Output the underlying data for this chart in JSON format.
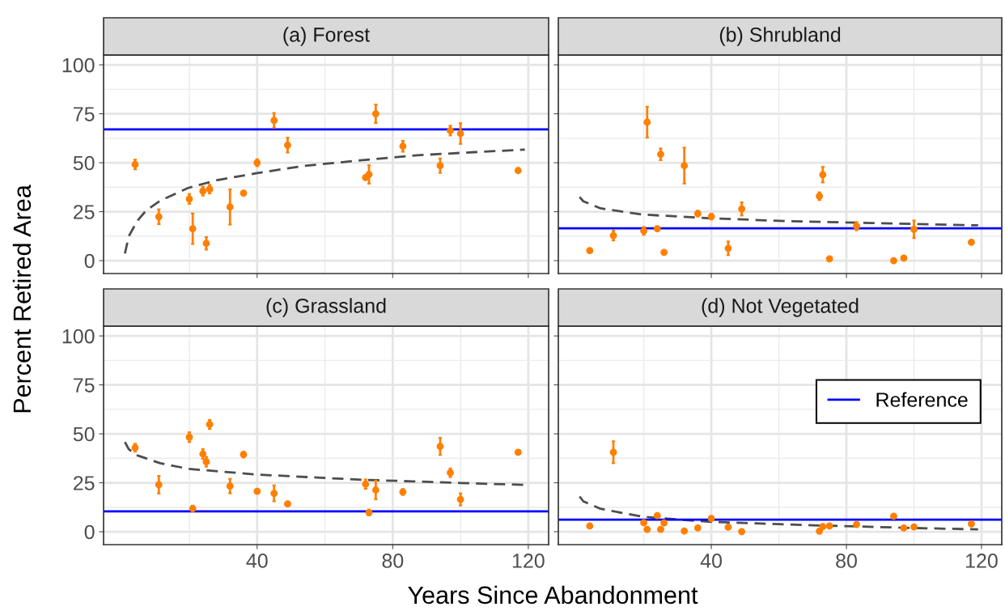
{
  "chart_data": [
    {
      "type": "scatter",
      "title": "(a) Forest",
      "ylabel": "Percent Retired Area",
      "xlim": [
        -5.3,
        126
      ],
      "ylim": [
        -6.6,
        105
      ],
      "xticks": [
        40,
        80,
        120
      ],
      "yticks": [
        0,
        25,
        50,
        75,
        100
      ],
      "grid": true,
      "tick_labels": "y",
      "marker": "circle",
      "series": [
        {
          "color": "#ff7f00",
          "x": [
            4,
            11,
            20,
            21,
            24,
            25,
            26,
            32,
            36,
            40,
            45,
            49,
            72,
            73,
            75,
            83,
            94,
            97,
            100,
            117
          ],
          "values": [
            49.1,
            22.4,
            31.5,
            16.3,
            35.5,
            8.8,
            36.5,
            27.4,
            34.5,
            50,
            71.6,
            59,
            42.4,
            44,
            75,
            58.4,
            48.5,
            66.4,
            64.9,
            46
          ],
          "errors": [
            2.5,
            3.8,
            2.5,
            7.8,
            2.3,
            3.2,
            2.2,
            9,
            null,
            1.8,
            3.8,
            3.8,
            null,
            4.7,
            4.7,
            2.8,
            3.7,
            2.5,
            5.3,
            null
          ]
        },
        {
          "type": "line",
          "color": "#4d4d4d",
          "line_style": "dashed",
          "marker": "none",
          "x": [
            1,
            2.1,
            4.6,
            7.2,
            11.4,
            19.8,
            28.2,
            40,
            53.5,
            70.4,
            87.3,
            104,
            119
          ],
          "values": [
            3.6,
            12.3,
            20.2,
            25.5,
            30.6,
            37.2,
            41.1,
            44.7,
            48.3,
            51.2,
            53.8,
            55.4,
            56.7
          ]
        }
      ],
      "ref_lines": [
        {
          "axis": "y",
          "value": 67.0,
          "color": "#0000ff"
        }
      ]
    },
    {
      "type": "scatter",
      "title": "(b) Shrubland",
      "xlim": [
        -5.3,
        126
      ],
      "ylim": [
        -6.6,
        105
      ],
      "xticks": [
        40,
        80,
        120
      ],
      "yticks": [
        0,
        25,
        50,
        75,
        100
      ],
      "grid": true,
      "tick_labels": false,
      "marker": "circle",
      "series": [
        {
          "color": "#ff7f00",
          "x": [
            4,
            11,
            20,
            21,
            24,
            25,
            26,
            32,
            36,
            40,
            45,
            49,
            72,
            73,
            75,
            83,
            94,
            97,
            100,
            117
          ],
          "values": [
            5.1,
            12.8,
            15.2,
            70.7,
            16.3,
            54.3,
            4.2,
            48.5,
            24.0,
            22.5,
            6.3,
            26.4,
            32.9,
            43.9,
            0.9,
            17.6,
            0,
            1.3,
            16,
            9.4
          ],
          "errors": [
            null,
            2.5,
            2,
            7.9,
            null,
            3,
            null,
            9.2,
            1.5,
            1.5,
            3.5,
            3.4,
            2,
            4,
            null,
            2.1,
            null,
            null,
            4.5,
            null
          ]
        },
        {
          "type": "line",
          "color": "#4d4d4d",
          "line_style": "dashed",
          "marker": "none",
          "x": [
            1,
            2.1,
            7.2,
            19.8,
            40,
            62,
            87.3,
            119
          ],
          "values": [
            32.5,
            30.3,
            26.7,
            23.5,
            21.6,
            20.2,
            19.2,
            18.0
          ]
        }
      ],
      "ref_lines": [
        {
          "axis": "y",
          "value": 16.5,
          "color": "#0000ff"
        }
      ]
    },
    {
      "type": "scatter",
      "title": "(c) Grassland",
      "xlabel": "Years Since Abandonment",
      "xlim": [
        -5.3,
        126
      ],
      "ylim": [
        -6.6,
        105
      ],
      "xticks": [
        40,
        80,
        120
      ],
      "yticks": [
        0,
        25,
        50,
        75,
        100
      ],
      "grid": true,
      "marker": "circle",
      "series": [
        {
          "color": "#ff7f00",
          "x": [
            4,
            11,
            20,
            21,
            24,
            25,
            26,
            32,
            36,
            40,
            45,
            49,
            72,
            73,
            75,
            83,
            94,
            97,
            100,
            117
          ],
          "values": [
            42.9,
            24.0,
            48.3,
            11.8,
            39.7,
            35.7,
            54.8,
            23.3,
            39.4,
            20.6,
            19.6,
            14.2,
            24.3,
            9.8,
            21.3,
            20.3,
            43.6,
            30.1,
            16.5,
            40.6
          ],
          "errors": [
            2,
            4.5,
            2.5,
            1.5,
            2.5,
            2.5,
            2.3,
            3.7,
            1.5,
            null,
            4.1,
            null,
            2.4,
            1.5,
            4.8,
            1.5,
            4.4,
            2.2,
            3.1,
            null
          ]
        },
        {
          "type": "line",
          "color": "#4d4d4d",
          "line_style": "dashed",
          "marker": "none",
          "x": [
            1,
            2.1,
            4.6,
            11.4,
            19.8,
            40,
            70,
            100,
            119
          ],
          "values": [
            45.8,
            42.2,
            39,
            35,
            32.1,
            29.2,
            26.6,
            24.9,
            23.9
          ]
        }
      ],
      "ref_lines": [
        {
          "axis": "y",
          "value": 10.4,
          "color": "#0000ff"
        }
      ]
    },
    {
      "type": "scatter",
      "title": "(d) Not Vegetated",
      "xlim": [
        -5.3,
        126
      ],
      "ylim": [
        -6.6,
        105
      ],
      "xticks": [
        40,
        80,
        120
      ],
      "yticks": [
        0,
        25,
        50,
        75,
        100
      ],
      "grid": true,
      "tick_labels": "x",
      "marker": "circle",
      "legend": "top right",
      "series": [
        {
          "color": "#ff7f00",
          "x": [
            4,
            11,
            20,
            21,
            24,
            25,
            26,
            32,
            36,
            40,
            45,
            49,
            72,
            73,
            75,
            83,
            94,
            97,
            100,
            117
          ],
          "values": [
            2.9,
            40.6,
            4.6,
            1.2,
            8.2,
            1.2,
            4.5,
            0.4,
            1.9,
            6.8,
            2.3,
            0.1,
            0.3,
            2.6,
            2.9,
            3.7,
            7.9,
            1.9,
            2.4,
            4.0
          ],
          "errors": [
            null,
            5.6,
            null,
            null,
            null,
            null,
            null,
            null,
            null,
            null,
            null,
            null,
            null,
            null,
            null,
            null,
            null,
            null,
            null,
            null
          ]
        },
        {
          "type": "line",
          "color": "#4d4d4d",
          "line_style": "dashed",
          "marker": "none",
          "x": [
            1,
            2.1,
            7.2,
            19.8,
            40,
            70,
            100,
            119
          ],
          "values": [
            18,
            15.5,
            11.7,
            7.6,
            5.0,
            3.3,
            1.9,
            1.2
          ]
        }
      ],
      "ref_lines": [
        {
          "axis": "y",
          "value": 6.2,
          "color": "#0000ff",
          "label": "Reference"
        }
      ]
    }
  ]
}
